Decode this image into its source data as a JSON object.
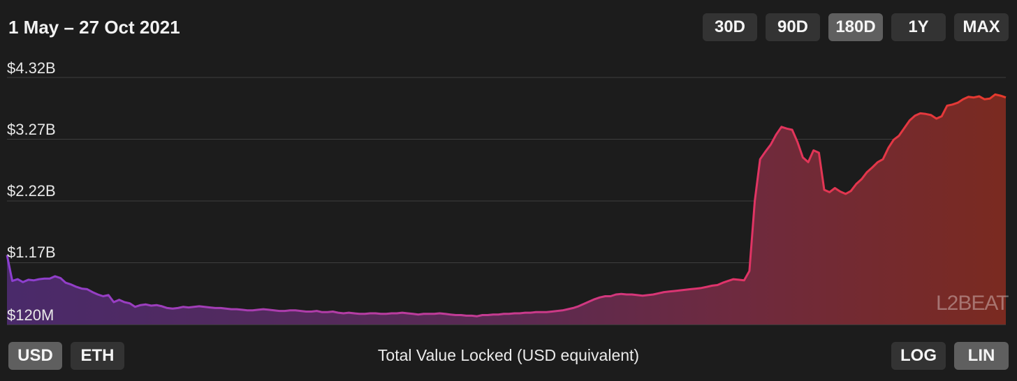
{
  "header": {
    "title": "1 May – 27 Oct 2021",
    "range_buttons": [
      {
        "label": "30D",
        "active": false
      },
      {
        "label": "90D",
        "active": false
      },
      {
        "label": "180D",
        "active": true
      },
      {
        "label": "1Y",
        "active": false
      },
      {
        "label": "MAX",
        "active": false
      }
    ]
  },
  "footer": {
    "currency_buttons": [
      {
        "label": "USD",
        "active": true
      },
      {
        "label": "ETH",
        "active": false
      }
    ],
    "caption": "Total Value Locked (USD equivalent)",
    "scale_buttons": [
      {
        "label": "LOG",
        "active": false
      },
      {
        "label": "LIN",
        "active": true
      }
    ]
  },
  "watermark": "L2BEAT",
  "colors": {
    "background": "#1c1c1c",
    "line_start": "#8b3fd0",
    "line_mid": "#e0336a",
    "line_end": "#e63a2b",
    "button": "#333333",
    "button_active": "#5f5f5f"
  },
  "chart_data": {
    "type": "area",
    "title": "",
    "xlabel": "",
    "ylabel": "Total Value Locked (USD equivalent)",
    "y_tick_labels": [
      "$120M",
      "$1.17B",
      "$2.22B",
      "$3.27B",
      "$4.32B"
    ],
    "y_tick_values": [
      0.12,
      1.17,
      2.22,
      3.27,
      4.32
    ],
    "ylim": [
      0.12,
      4.32
    ],
    "y_unit": "USD billions",
    "x_start": "2021-05-01",
    "x_end": "2021-10-27",
    "scale": "linear",
    "grid": true,
    "series": [
      {
        "values": [
          1.3,
          0.86,
          0.89,
          0.84,
          0.88,
          0.87,
          0.89,
          0.9,
          0.9,
          0.94,
          0.91,
          0.83,
          0.8,
          0.76,
          0.73,
          0.72,
          0.67,
          0.63,
          0.6,
          0.62,
          0.5,
          0.54,
          0.5,
          0.48,
          0.42,
          0.45,
          0.46,
          0.44,
          0.45,
          0.43,
          0.4,
          0.39,
          0.4,
          0.42,
          0.41,
          0.42,
          0.43,
          0.42,
          0.41,
          0.4,
          0.4,
          0.39,
          0.38,
          0.38,
          0.37,
          0.36,
          0.36,
          0.37,
          0.38,
          0.37,
          0.36,
          0.35,
          0.35,
          0.36,
          0.36,
          0.35,
          0.34,
          0.34,
          0.35,
          0.33,
          0.33,
          0.34,
          0.32,
          0.31,
          0.32,
          0.31,
          0.3,
          0.3,
          0.31,
          0.31,
          0.3,
          0.3,
          0.31,
          0.31,
          0.32,
          0.31,
          0.3,
          0.29,
          0.3,
          0.3,
          0.3,
          0.31,
          0.3,
          0.29,
          0.28,
          0.28,
          0.27,
          0.27,
          0.26,
          0.28,
          0.28,
          0.29,
          0.29,
          0.3,
          0.3,
          0.31,
          0.31,
          0.32,
          0.32,
          0.33,
          0.33,
          0.33,
          0.34,
          0.35,
          0.36,
          0.38,
          0.4,
          0.43,
          0.47,
          0.51,
          0.55,
          0.58,
          0.6,
          0.6,
          0.63,
          0.64,
          0.63,
          0.63,
          0.62,
          0.61,
          0.62,
          0.63,
          0.65,
          0.67,
          0.68,
          0.69,
          0.7,
          0.71,
          0.72,
          0.73,
          0.74,
          0.76,
          0.78,
          0.79,
          0.83,
          0.86,
          0.89,
          0.88,
          0.87,
          1.03,
          2.22,
          2.93,
          3.06,
          3.18,
          3.35,
          3.48,
          3.45,
          3.43,
          3.22,
          2.96,
          2.88,
          3.08,
          3.04,
          2.41,
          2.37,
          2.44,
          2.38,
          2.34,
          2.39,
          2.51,
          2.59,
          2.71,
          2.79,
          2.88,
          2.93,
          3.12,
          3.26,
          3.33,
          3.46,
          3.59,
          3.67,
          3.71,
          3.7,
          3.68,
          3.62,
          3.66,
          3.84,
          3.86,
          3.89,
          3.95,
          3.99,
          3.98,
          4.0,
          3.95,
          3.96,
          4.03,
          4.01,
          3.98
        ]
      }
    ]
  }
}
